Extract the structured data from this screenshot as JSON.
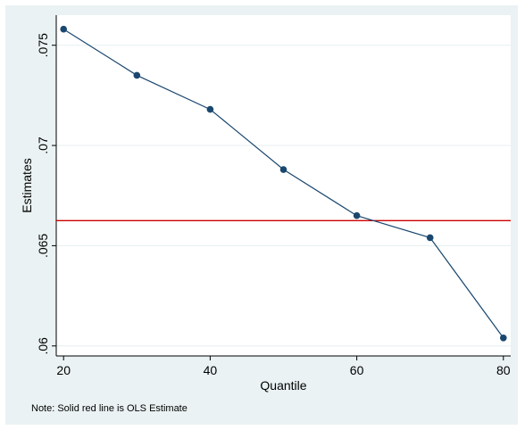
{
  "chart_data": {
    "type": "line",
    "title": "",
    "xlabel": "Quantile",
    "ylabel": "Estimates",
    "note": "Note: Solid red line is OLS Estimate",
    "x": [
      20,
      30,
      40,
      50,
      60,
      70,
      80
    ],
    "series": [
      {
        "values": [
          0.0758,
          0.0735,
          0.0718,
          0.0688,
          0.0665,
          0.0654,
          0.0604
        ],
        "color": "#1a476f"
      }
    ],
    "reference_line": {
      "value": 0.06625,
      "color": "#cc0000"
    },
    "xticks": [
      20,
      40,
      60,
      80
    ],
    "xtick_labels": [
      "20",
      "40",
      "60",
      "80"
    ],
    "yticks": [
      0.06,
      0.065,
      0.07,
      0.075
    ],
    "ytick_labels": [
      ".06",
      ".065",
      ".07",
      ".075"
    ],
    "xlim": [
      19,
      81
    ],
    "ylim": [
      0.0595,
      0.0765
    ],
    "grid": true,
    "colors": {
      "plot_background": "#ffffff",
      "figure_background": "#eaf2f3",
      "grid": "#eaf2f3"
    }
  }
}
